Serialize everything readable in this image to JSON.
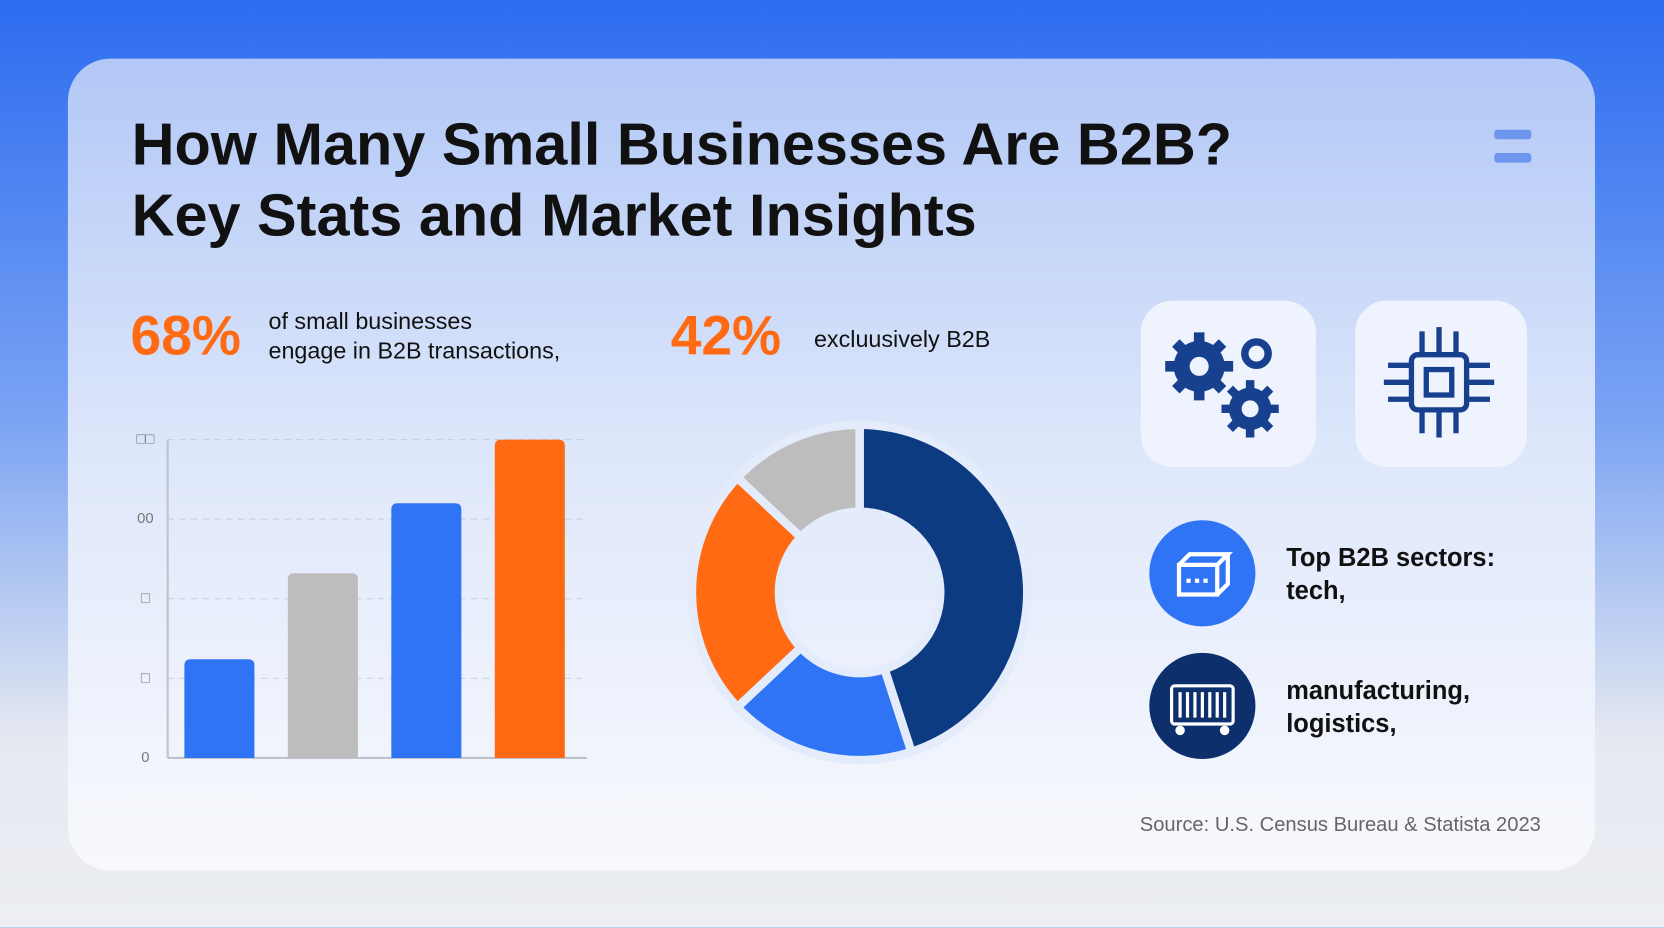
{
  "title": [
    "How Many Small Businesses Are B2B?",
    "Key Stats and Market Insights"
  ],
  "stats": [
    {
      "value": "68%",
      "text": [
        "of small businesses",
        "engage in B2B transactions,"
      ]
    },
    {
      "value": "42%",
      "text": [
        "excluusively B2B"
      ]
    }
  ],
  "chart_data": [
    {
      "type": "bar",
      "values": [
        31,
        58,
        80,
        100
      ],
      "colors": [
        "#2f74f5",
        "#bdbdbd",
        "#2f74f5",
        "#ff6a13"
      ],
      "ylim": [
        0,
        100
      ],
      "yticks": [
        0,
        {
          "value": 25,
          "label": "□"
        },
        {
          "value": 50,
          "label": "□"
        },
        {
          "value": 75,
          "label": "00"
        },
        {
          "value": 100,
          "label": "□□"
        }
      ],
      "grid": true
    },
    {
      "type": "pie",
      "values": [
        45,
        18,
        24,
        13
      ],
      "colors": [
        "#0d3b82",
        "#2f74f5",
        "#ff6a13",
        "#bdbdbd"
      ],
      "hole": true
    }
  ],
  "sectors": [
    [
      "Top B2B sectors:",
      "tech,"
    ],
    [
      "manufacturing,",
      "logistics,"
    ]
  ],
  "source": "Source: U.S. Census Bureau & Statista 2023"
}
